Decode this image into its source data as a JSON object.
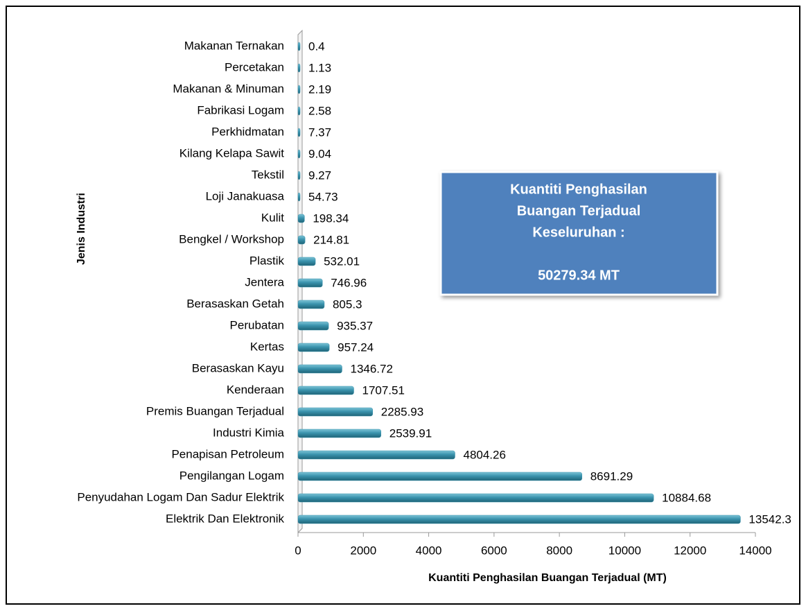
{
  "chart_data": {
    "type": "bar",
    "orientation": "horizontal",
    "categories": [
      "Makanan Ternakan",
      "Percetakan",
      "Makanan & Minuman",
      "Fabrikasi Logam",
      "Perkhidmatan",
      "Kilang Kelapa Sawit",
      "Tekstil",
      "Loji Janakuasa",
      "Kulit",
      "Bengkel / Workshop",
      "Plastik",
      "Jentera",
      "Berasaskan Getah",
      "Perubatan",
      "Kertas",
      "Berasaskan Kayu",
      "Kenderaan",
      "Premis Buangan Terjadual",
      "Industri Kimia",
      "Penapisan Petroleum",
      "Pengilangan Logam",
      "Penyudahan Logam Dan Sadur Elektrik",
      "Elektrik Dan Elektronik"
    ],
    "values": [
      0.4,
      1.13,
      2.19,
      2.58,
      7.37,
      9.04,
      9.27,
      54.73,
      198.34,
      214.81,
      532.01,
      746.96,
      805.3,
      935.37,
      957.24,
      1346.72,
      1707.51,
      2285.93,
      2539.91,
      4804.26,
      8691.29,
      10884.68,
      13542.3
    ],
    "color": "#3a93ad",
    "xlim": [
      0,
      14000
    ],
    "xticks": [
      0,
      2000,
      4000,
      6000,
      8000,
      10000,
      12000,
      14000
    ],
    "xlabel": "Kuantiti Penghasilan Buangan Terjadual (MT)",
    "ylabel": "Jenis Industri",
    "grid": false,
    "annotation": {
      "title": [
        "Kuantiti Penghasilan",
        "Buangan Terjadual",
        "Keseluruhan :"
      ],
      "value": "50279.34 MT",
      "color": "#4f81bd"
    }
  }
}
